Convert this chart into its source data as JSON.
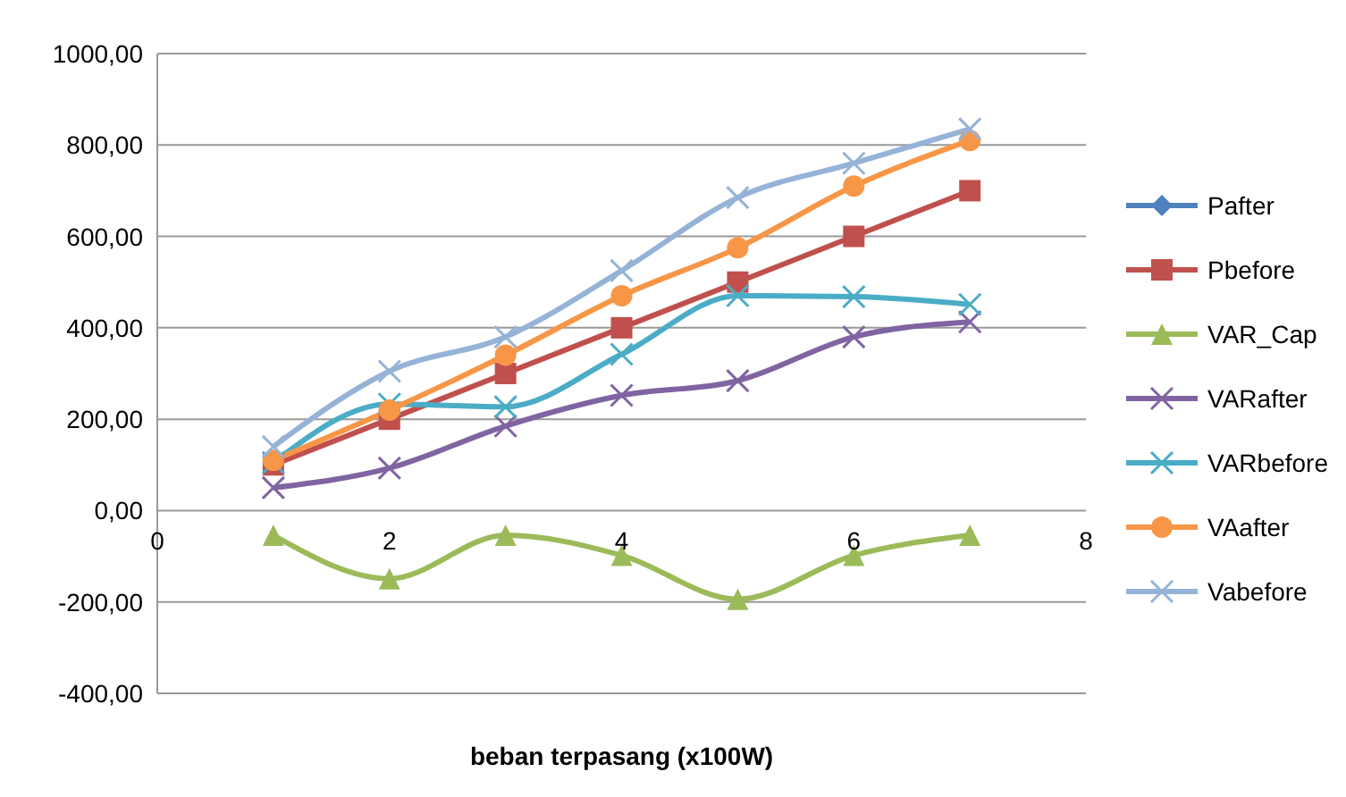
{
  "chart_data": {
    "type": "line",
    "xlabel": "beban terpasang (x100W)",
    "x": [
      1,
      2,
      3,
      4,
      5,
      6,
      7
    ],
    "xlim": [
      0,
      8
    ],
    "xticks": [
      0,
      2,
      4,
      6,
      8
    ],
    "ylim": [
      -400,
      1000
    ],
    "yticks": [
      {
        "value": -400,
        "label": "-400,00"
      },
      {
        "value": -200,
        "label": "-200,00"
      },
      {
        "value": 0,
        "label": "0,00"
      },
      {
        "value": 200,
        "label": "200,00"
      },
      {
        "value": 400,
        "label": "400,00"
      },
      {
        "value": 600,
        "label": "600,00"
      },
      {
        "value": 800,
        "label": "800,00"
      },
      {
        "value": 1000,
        "label": "1000,00"
      }
    ],
    "grid": "y",
    "legend": "right",
    "series": [
      {
        "name": "Pafter",
        "color": "#4f81bd",
        "marker": "diamond",
        "values": [
          null,
          null,
          null,
          null,
          null,
          null,
          null
        ]
      },
      {
        "name": "Pbefore",
        "color": "#c0504d",
        "marker": "square",
        "values": [
          100,
          200,
          300,
          400,
          500,
          600,
          700
        ]
      },
      {
        "name": "VAR_Cap",
        "color": "#9bbb59",
        "marker": "triangle",
        "values": [
          -54,
          -149,
          -54,
          -98,
          -194,
          -98,
          -54
        ]
      },
      {
        "name": "VARafter",
        "color": "#8064a2",
        "marker": "cross",
        "values": [
          50,
          93,
          185,
          252,
          284,
          380,
          413
        ]
      },
      {
        "name": "VARbefore",
        "color": "#4bacc6",
        "marker": "cross",
        "values": [
          105,
          233,
          227,
          342,
          470,
          468,
          451
        ]
      },
      {
        "name": "VAafter",
        "color": "#f79646",
        "marker": "circle",
        "values": [
          110,
          220,
          340,
          470,
          575,
          710,
          810
        ]
      },
      {
        "name": "Vabefore",
        "color": "#95b3d7",
        "marker": "cross",
        "values": [
          140,
          305,
          380,
          525,
          685,
          760,
          835
        ]
      }
    ]
  }
}
